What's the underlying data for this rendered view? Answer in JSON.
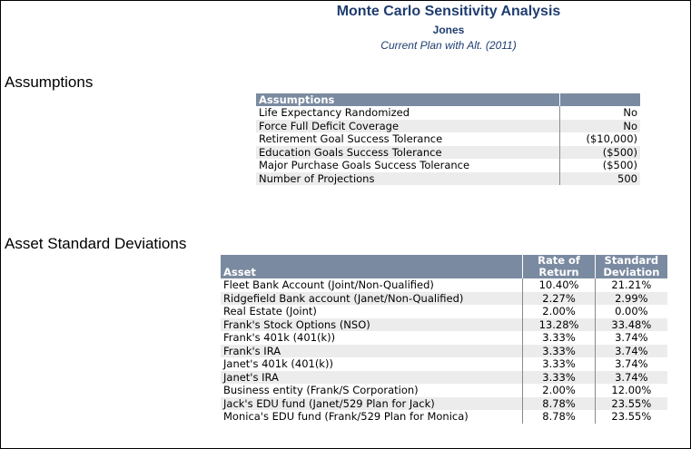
{
  "header": {
    "title": "Monte Carlo Sensitivity Analysis",
    "client": "Jones",
    "plan": "Current Plan with Alt. (2011)"
  },
  "sections": {
    "assumptions": "Assumptions",
    "asset_sd": "Asset Standard Deviations"
  },
  "assumptions": {
    "header_label": "Assumptions",
    "rows": [
      {
        "label": "Life Expectancy Randomized",
        "value": "No"
      },
      {
        "label": "Force Full Deficit Coverage",
        "value": "No"
      },
      {
        "label": "Retirement Goal Success Tolerance",
        "value": "($10,000)"
      },
      {
        "label": "Education Goals Success Tolerance",
        "value": "($500)"
      },
      {
        "label": "Major Purchase Goals Success Tolerance",
        "value": "($500)"
      },
      {
        "label": "Number of Projections",
        "value": "500"
      }
    ]
  },
  "assets": {
    "col_asset": "Asset",
    "col_return_1": "Rate of",
    "col_return_2": "Return",
    "col_sd_1": "Standard",
    "col_sd_2": "Deviation",
    "rows": [
      {
        "asset": "Fleet Bank Account (Joint/Non-Qualified)",
        "return": "10.40%",
        "sd": "21.21%"
      },
      {
        "asset": "Ridgefield Bank account (Janet/Non-Qualified)",
        "return": "2.27%",
        "sd": "2.99%"
      },
      {
        "asset": "Real Estate (Joint)",
        "return": "2.00%",
        "sd": "0.00%"
      },
      {
        "asset": "Frank's Stock Options (NSO)",
        "return": "13.28%",
        "sd": "33.48%"
      },
      {
        "asset": "Frank's 401k (401(k))",
        "return": "3.33%",
        "sd": "3.74%"
      },
      {
        "asset": "Frank's IRA",
        "return": "3.33%",
        "sd": "3.74%"
      },
      {
        "asset": "Janet's 401k (401(k))",
        "return": "3.33%",
        "sd": "3.74%"
      },
      {
        "asset": "Janet's IRA",
        "return": "3.33%",
        "sd": "3.74%"
      },
      {
        "asset": "Business entity (Frank/S Corporation)",
        "return": "2.00%",
        "sd": "12.00%"
      },
      {
        "asset": "Jack's EDU fund (Janet/529 Plan for Jack)",
        "return": "8.78%",
        "sd": "23.55%"
      },
      {
        "asset": "Monica's EDU fund (Frank/529 Plan for Monica)",
        "return": "8.78%",
        "sd": "23.55%"
      }
    ]
  }
}
